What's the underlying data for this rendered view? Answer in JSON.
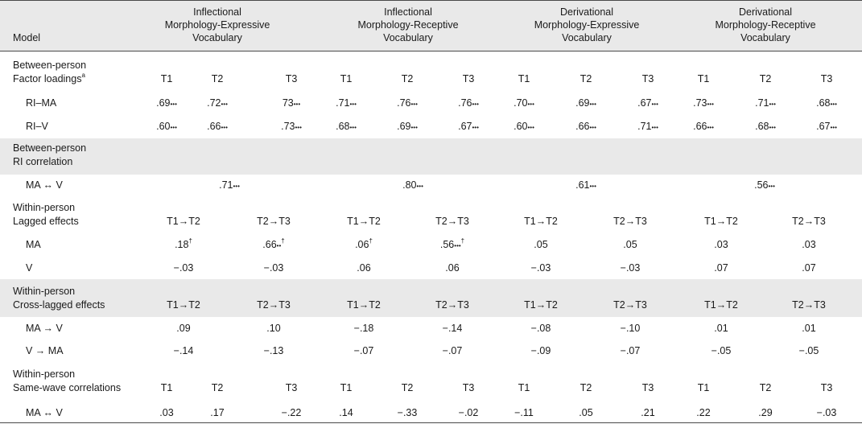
{
  "header": {
    "model_label": "Model",
    "columns": [
      {
        "lines": [
          "Inflectional",
          "Morphology-Expressive",
          "Vocabulary"
        ]
      },
      {
        "lines": [
          "Inflectional",
          "Morphology-Receptive",
          "Vocabulary"
        ]
      },
      {
        "lines": [
          "Derivational",
          "Morphology-Expressive",
          "Vocabulary"
        ]
      },
      {
        "lines": [
          "Derivational",
          "Morphology-Receptive",
          "Vocabulary"
        ]
      }
    ]
  },
  "sections": {
    "loadings": {
      "title1": "Between-person",
      "title2": "Factor loadings",
      "title2_sup": "a",
      "waves": [
        "T1",
        "T2",
        "T3"
      ],
      "rows": [
        {
          "label": "RI–MA",
          "values": [
            ".69",
            ".72",
            "73",
            ".71",
            ".76",
            ".76",
            ".70",
            ".69",
            ".67",
            ".73",
            ".71",
            ".68"
          ],
          "marks": [
            "•••",
            "•••",
            "•••",
            "•••",
            "•••",
            "•••",
            "•••",
            "•••",
            "•••",
            "•••",
            "•••",
            "•••"
          ]
        },
        {
          "label": "RI–V",
          "values": [
            ".60",
            ".66",
            ".73",
            ".68",
            ".69",
            ".67",
            ".60",
            ".66",
            ".71",
            ".66",
            ".68",
            ".67"
          ],
          "marks": [
            "•••",
            "•••",
            "•••",
            "•••",
            "•••",
            "•••",
            "•••",
            "•••",
            "•••",
            "•••",
            "•••",
            "•••"
          ]
        }
      ]
    },
    "ri_corr": {
      "title1": "Between-person",
      "title2": "RI correlation",
      "row": {
        "label": "MA ↔ V",
        "values": [
          ".71",
          ".80",
          ".61",
          ".56"
        ],
        "mark": "•••"
      }
    },
    "lagged": {
      "title1": "Within-person",
      "title2": "Lagged effects",
      "intervals": [
        "T1→T2",
        "T2→T3"
      ],
      "rows": [
        {
          "label": "MA",
          "values": [
            ".18",
            ".66",
            ".06",
            ".56",
            ".05",
            ".05",
            ".03",
            ".03"
          ],
          "marks": [
            "",
            "••",
            "",
            "•••",
            "",
            "",
            "",
            ""
          ],
          "dagger": [
            "†",
            "†",
            "†",
            "†",
            "",
            "",
            "",
            ""
          ]
        },
        {
          "label": "V",
          "values": [
            "−.03",
            "−.03",
            ".06",
            ".06",
            "−.03",
            "−.03",
            ".07",
            ".07"
          ],
          "marks": [
            "",
            "",
            "",
            "",
            "",
            "",
            "",
            ""
          ],
          "dagger": [
            "",
            "",
            "",
            "",
            "",
            "",
            "",
            ""
          ]
        }
      ]
    },
    "cross": {
      "title1": "Within-person",
      "title2": "Cross-lagged effects",
      "intervals": [
        "T1→T2",
        "T2→T3"
      ],
      "rows": [
        {
          "label": "MA → V",
          "values": [
            ".09",
            ".10",
            "−.18",
            "−.14",
            "−.08",
            "−.10",
            ".01",
            ".01"
          ]
        },
        {
          "label": "V → MA",
          "values": [
            "−.14",
            "−.13",
            "−.07",
            "−.07",
            "−.09",
            "−.07",
            "−.05",
            "−.05"
          ]
        }
      ]
    },
    "samewave": {
      "title1": "Within-person",
      "title2": "Same-wave correlations",
      "waves": [
        "T1",
        "T2",
        "T3"
      ],
      "row": {
        "label": "MA ↔ V",
        "values": [
          ".03",
          ".17",
          "−.22",
          ".14",
          "−.33",
          "−.02",
          "−.11",
          ".05",
          ".21",
          ".22",
          ".29",
          "−.03"
        ]
      }
    }
  }
}
